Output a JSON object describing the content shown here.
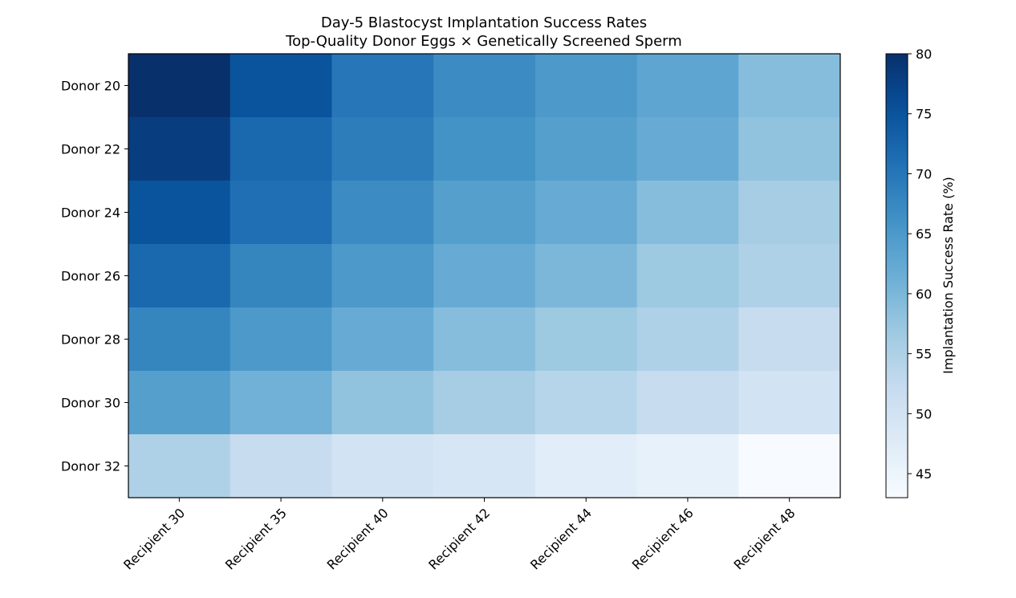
{
  "chart_data": {
    "type": "heatmap",
    "title": "Day-5 Blastocyst Implantation Success Rates",
    "subtitle": "Top-Quality Donor Eggs × Genetically Screened Sperm",
    "x_categories": [
      "Recipient 30",
      "Recipient 35",
      "Recipient 40",
      "Recipient 42",
      "Recipient 44",
      "Recipient 46",
      "Recipient 48"
    ],
    "y_categories": [
      "Donor 20",
      "Donor 22",
      "Donor 24",
      "Donor 26",
      "Donor 28",
      "Donor 30",
      "Donor 32"
    ],
    "values": [
      [
        80,
        75,
        70,
        67,
        65,
        63,
        59
      ],
      [
        78,
        72,
        69,
        66,
        64,
        62,
        58
      ],
      [
        75,
        71,
        67,
        64,
        62,
        59,
        56
      ],
      [
        72,
        68,
        65,
        62,
        60,
        57,
        55
      ],
      [
        68,
        65,
        62,
        59,
        57,
        55,
        52
      ],
      [
        64,
        61,
        58,
        56,
        54,
        52,
        50
      ],
      [
        55,
        52,
        50,
        49,
        47,
        46,
        43
      ]
    ],
    "colormap": "Blues",
    "colorbar": {
      "label": "Implantation Success Rate (%)",
      "range": [
        43,
        80
      ],
      "ticks": [
        "45",
        "50",
        "55",
        "60",
        "65",
        "70",
        "75",
        "80"
      ]
    },
    "grid": false
  }
}
